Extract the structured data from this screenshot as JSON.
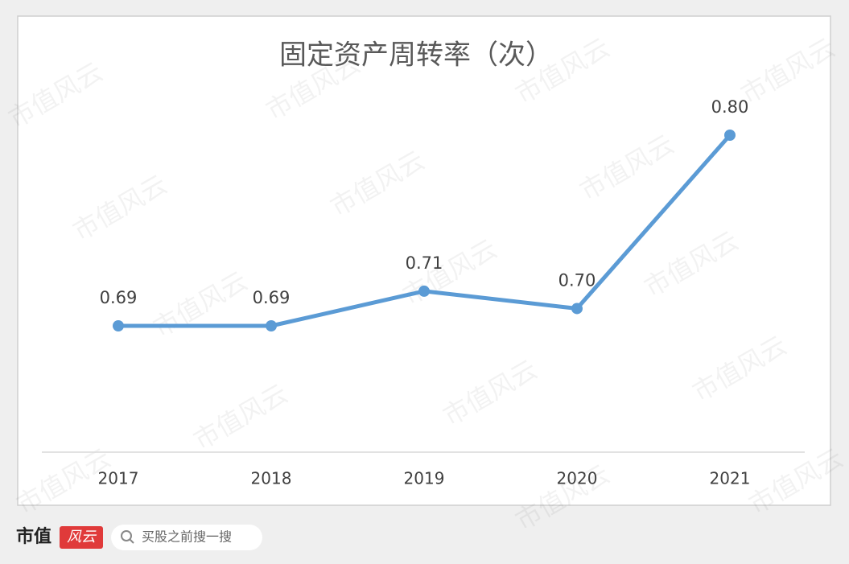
{
  "chart_data": {
    "type": "line",
    "title": "固定资产周转率（次）",
    "categories": [
      "2017",
      "2018",
      "2019",
      "2020",
      "2021"
    ],
    "series": [
      {
        "color": "#5b9bd5",
        "values": [
          0.69,
          0.69,
          0.71,
          0.7,
          0.8
        ],
        "value_labels": [
          "0.69",
          "0.69",
          "0.71",
          "0.70",
          "0.80"
        ]
      }
    ]
  },
  "watermark": "市值风云",
  "footer": {
    "brand": "市值",
    "badge": "风云",
    "search_placeholder": "买股之前搜一搜"
  }
}
